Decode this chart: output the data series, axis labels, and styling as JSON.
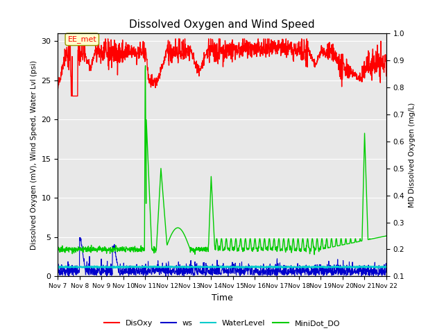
{
  "title": "Dissolved Oxygen and Wind Speed",
  "xlabel": "Time",
  "ylabel_left": "Dissolved Oxygen (mV), Wind Speed, Water Lvl (psi)",
  "ylabel_right": "MD Dissolved Oxygen (mg/L)",
  "annotation_text": "EE_met",
  "ylim_left": [
    0,
    31
  ],
  "ylim_right": [
    0.1,
    1.0
  ],
  "yticks_left": [
    0,
    5,
    10,
    15,
    20,
    25,
    30
  ],
  "yticks_right": [
    0.1,
    0.2,
    0.3,
    0.4,
    0.5,
    0.6,
    0.7,
    0.8,
    0.9,
    1.0
  ],
  "colors": {
    "DisOxy": "#ff0000",
    "ws": "#0000cc",
    "WaterLevel": "#00cccc",
    "MiniDot_DO": "#00cc00"
  },
  "linewidths": {
    "DisOxy": 1.0,
    "ws": 0.8,
    "WaterLevel": 1.5,
    "MiniDot_DO": 1.0
  },
  "bg_color": "#e8e8e8",
  "grid_color": "#ffffff",
  "annotation_box_color": "#ffffcc",
  "annotation_edge_color": "#999900"
}
